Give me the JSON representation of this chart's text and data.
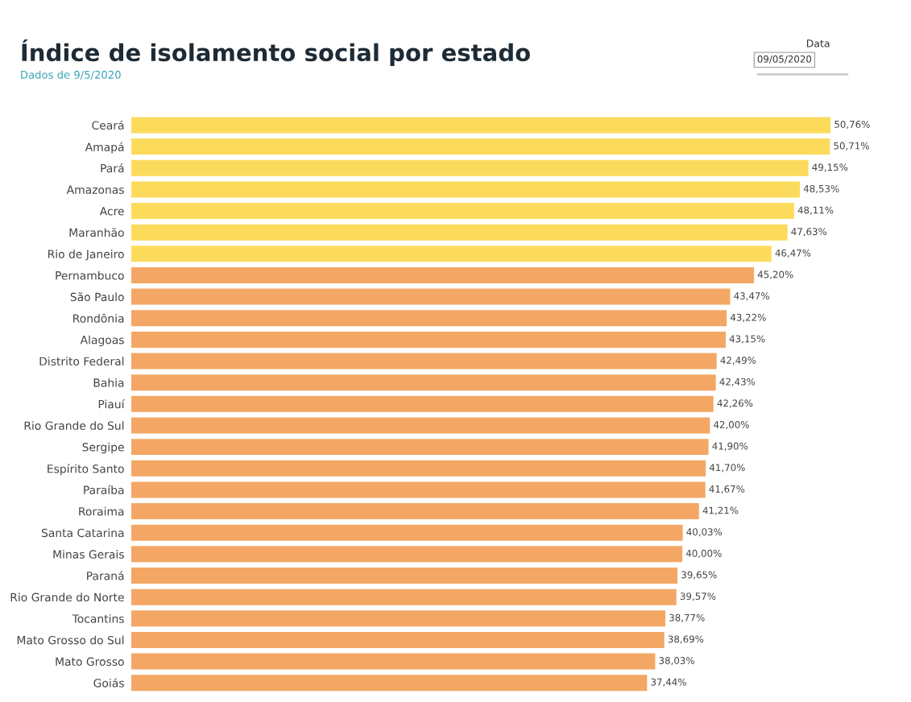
{
  "chart_data": {
    "type": "bar",
    "orientation": "horizontal",
    "title": "Índice de isolamento social por estado",
    "subtitle": "Dados de 9/5/2020",
    "annotations": [
      "Data",
      "09/05/2020"
    ],
    "categories": [
      "Ceará",
      "Amapá",
      "Pará",
      "Amazonas",
      "Acre",
      "Maranhão",
      "Rio de Janeiro",
      "Pernambuco",
      "São Paulo",
      "Rondônia",
      "Alagoas",
      "Distrito Federal",
      "Bahia",
      "Piauí",
      "Rio Grande do Sul",
      "Sergipe",
      "Espírito Santo",
      "Paraíba",
      "Roraima",
      "Santa Catarina",
      "Minas Gerais",
      "Paraná",
      "Rio Grande do Norte",
      "Tocantins",
      "Mato Grosso do Sul",
      "Mato Grosso",
      "Goiás"
    ],
    "values": [
      50.76,
      50.71,
      49.15,
      48.53,
      48.11,
      47.63,
      46.47,
      45.2,
      43.47,
      43.22,
      43.15,
      42.49,
      42.43,
      42.26,
      42.0,
      41.9,
      41.7,
      41.67,
      41.21,
      40.03,
      40.0,
      39.65,
      39.57,
      38.77,
      38.69,
      38.03,
      37.44
    ],
    "value_labels": [
      "50,76%",
      "50,71%",
      "49,15%",
      "48,53%",
      "48,11%",
      "47,63%",
      "46,47%",
      "45,20%",
      "43,47%",
      "43,22%",
      "43,15%",
      "42,49%",
      "42,43%",
      "42,26%",
      "42,00%",
      "41,90%",
      "41,70%",
      "41,67%",
      "41,21%",
      "40,03%",
      "40,00%",
      "39,65%",
      "39,57%",
      "38,77%",
      "38,69%",
      "38,03%",
      "37,44%"
    ],
    "colors": [
      "#fcdb5c",
      "#fcdb5c",
      "#fcdb5c",
      "#fcdb5c",
      "#fcdb5c",
      "#fcdb5c",
      "#fcdb5c",
      "#f4a764",
      "#f4a764",
      "#f4a764",
      "#f4a764",
      "#f4a764",
      "#f4a764",
      "#f4a764",
      "#f4a764",
      "#f4a764",
      "#f4a764",
      "#f4a764",
      "#f4a764",
      "#f4a764",
      "#f4a764",
      "#f4a764",
      "#f4a764",
      "#f4a764",
      "#f4a764",
      "#f4a764",
      "#f4a764"
    ],
    "grid": false,
    "legend": false
  }
}
